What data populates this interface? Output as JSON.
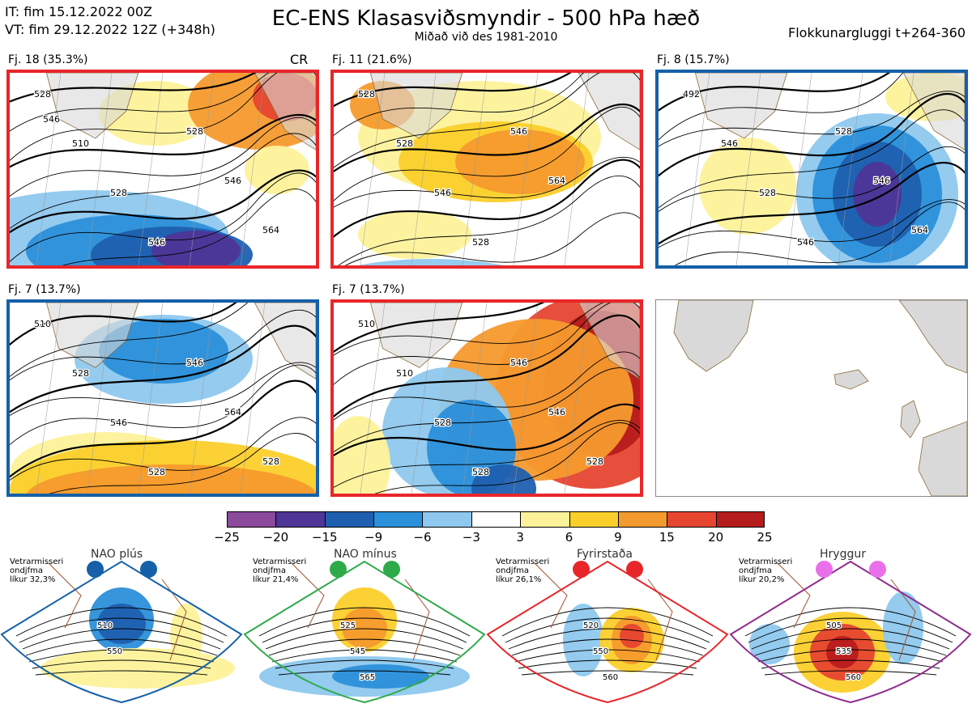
{
  "header": {
    "it_line": "IT: fim 15.12.2022 00Z",
    "vt_line": "VT: fim 29.12.2022 12Z  (+348h)",
    "title": "EC-ENS Klasasviðsmyndir - 500 hPa hæð",
    "subtitle": "Miðað við des 1981-2010",
    "window": "Flokkunargluggi t+264-360"
  },
  "panels": [
    {
      "label": "Fj. 18 (35.3%)",
      "corner": "CR",
      "border_color": "#e8262a",
      "contour_labels": [
        "528",
        "510",
        "528",
        "546",
        "528",
        "546",
        "564",
        "546"
      ]
    },
    {
      "label": "Fj. 11 (21.6%)",
      "corner": "",
      "border_color": "#e8262a",
      "contour_labels": [
        "528",
        "528",
        "546",
        "528",
        "546",
        "564"
      ]
    },
    {
      "label": "Fj. 8 (15.7%)",
      "corner": "",
      "border_color": "#1560a8",
      "contour_labels": [
        "492",
        "546",
        "528",
        "546",
        "528",
        "546",
        "564"
      ]
    },
    {
      "label": "Fj. 7 (13.7%)",
      "corner": "",
      "border_color": "#1560a8",
      "contour_labels": [
        "510",
        "528",
        "546",
        "528",
        "546",
        "564",
        "528"
      ]
    },
    {
      "label": "Fj. 7 (13.7%)",
      "corner": "",
      "border_color": "#e8262a",
      "contour_labels": [
        "510",
        "510",
        "528",
        "528",
        "546",
        "546",
        "528"
      ]
    }
  ],
  "colorbar": {
    "ticks": [
      "−25",
      "−20",
      "−15",
      "−9",
      "−6",
      "−3",
      "3",
      "6",
      "9",
      "15",
      "20",
      "25"
    ],
    "colors": [
      "#8b4a9c",
      "#4e3596",
      "#1f5fb0",
      "#2b8fd9",
      "#8ec8ee",
      "#ffffff",
      "#fdf29a",
      "#fbcf2b",
      "#f59a2e",
      "#e64530",
      "#b71c1c"
    ]
  },
  "regimes": [
    {
      "name": "NAO plús",
      "side_text": "Vetrarmisseri\nondjfma\nlíkur 32,3%",
      "color": "#1560a8",
      "dot_color": "#1560a8",
      "contour_labels": [
        "510",
        "550"
      ]
    },
    {
      "name": "NAO mínus",
      "side_text": "Vetrarmisseri\nondjfma\nlíkur 21,4%",
      "color": "#2eaa4a",
      "dot_color": "#2eaa4a",
      "contour_labels": [
        "525",
        "545",
        "565"
      ]
    },
    {
      "name": "Fyrirstaða",
      "side_text": "Vetrarmisseri\nondjfma\nlíkur 26,1%",
      "color": "#e8262a",
      "dot_color": "#e8262a",
      "contour_labels": [
        "520",
        "550",
        "560"
      ]
    },
    {
      "name": "Hryggur",
      "side_text": "Vetrarmisseri\nondjfma\nlíkur 20,2%",
      "color": "#8e2c8e",
      "dot_color": "#ea6fea",
      "contour_labels": [
        "505",
        "535",
        "560"
      ]
    }
  ],
  "chart_data": {
    "type": "heatmap",
    "title": "EC-ENS Klasasviðsmyndir - 500 hPa hæð",
    "subtitle": "Miðað við des 1981-2010",
    "colorbar_ticks": [
      -25,
      -20,
      -15,
      -9,
      -6,
      -3,
      3,
      6,
      9,
      15,
      20,
      25
    ],
    "clusters": [
      {
        "label": "Fj. 18 (35.3%)",
        "members": 18,
        "percent": 35.3
      },
      {
        "label": "Fj. 11 (21.6%)",
        "members": 11,
        "percent": 21.6
      },
      {
        "label": "Fj. 8 (15.7%)",
        "members": 8,
        "percent": 15.7
      },
      {
        "label": "Fj. 7 (13.7%)",
        "members": 7,
        "percent": 13.7
      },
      {
        "label": "Fj. 7 (13.7%)",
        "members": 7,
        "percent": 13.7
      }
    ],
    "regimes": [
      {
        "name": "NAO plús",
        "likelihood": 32.3
      },
      {
        "name": "NAO mínus",
        "likelihood": 21.4
      },
      {
        "name": "Fyrirstaða",
        "likelihood": 26.1
      },
      {
        "name": "Hryggur",
        "likelihood": 20.2
      }
    ]
  }
}
